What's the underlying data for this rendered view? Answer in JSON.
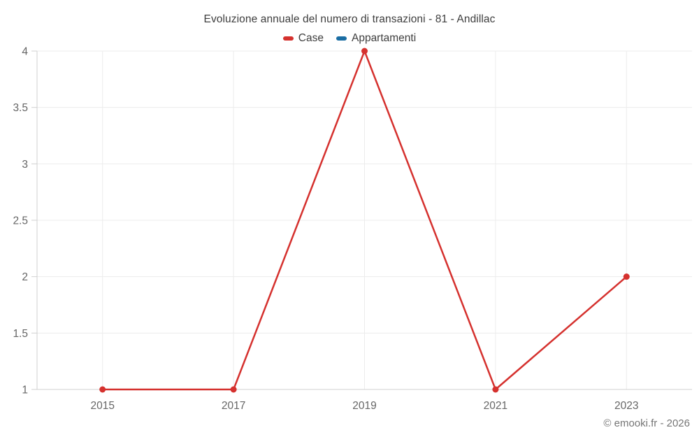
{
  "header": {
    "title": "Evoluzione annuale del numero di transazioni - 81 - Andillac"
  },
  "footer": {
    "credit": "© emooki.fr - 2026"
  },
  "chart_data": {
    "type": "line",
    "title": "Evoluzione annuale del numero di transazioni - 81 - Andillac",
    "xlabel": "",
    "ylabel": "",
    "categories": [
      2015,
      2017,
      2019,
      2021,
      2023
    ],
    "x_tick_labels": [
      "2015",
      "2017",
      "2019",
      "2021",
      "2023"
    ],
    "x_domain": [
      2014,
      2024
    ],
    "ylim": [
      1,
      4
    ],
    "y_ticks": [
      1,
      1.5,
      2,
      2.5,
      3,
      3.5,
      4
    ],
    "y_tick_labels": [
      "1",
      "1.5",
      "2",
      "2.5",
      "3",
      "3.5",
      "4"
    ],
    "grid": true,
    "legend_position": "top",
    "series": [
      {
        "name": "Case",
        "color": "#d5312e",
        "marker": "circle",
        "points": [
          {
            "x": 2015,
            "y": 1
          },
          {
            "x": 2017,
            "y": 1
          },
          {
            "x": 2019,
            "y": 4
          },
          {
            "x": 2021,
            "y": 1
          },
          {
            "x": 2023,
            "y": 2
          }
        ]
      },
      {
        "name": "Appartamenti",
        "color": "#1a6da3",
        "marker": "circle",
        "points": []
      }
    ]
  },
  "colors": {
    "background": "#ffffff",
    "gridline": "#ececec",
    "axis_line": "#d0d0d0",
    "tick_label": "#666666",
    "title_text": "#3e3e3e",
    "footer_text": "#757575"
  }
}
